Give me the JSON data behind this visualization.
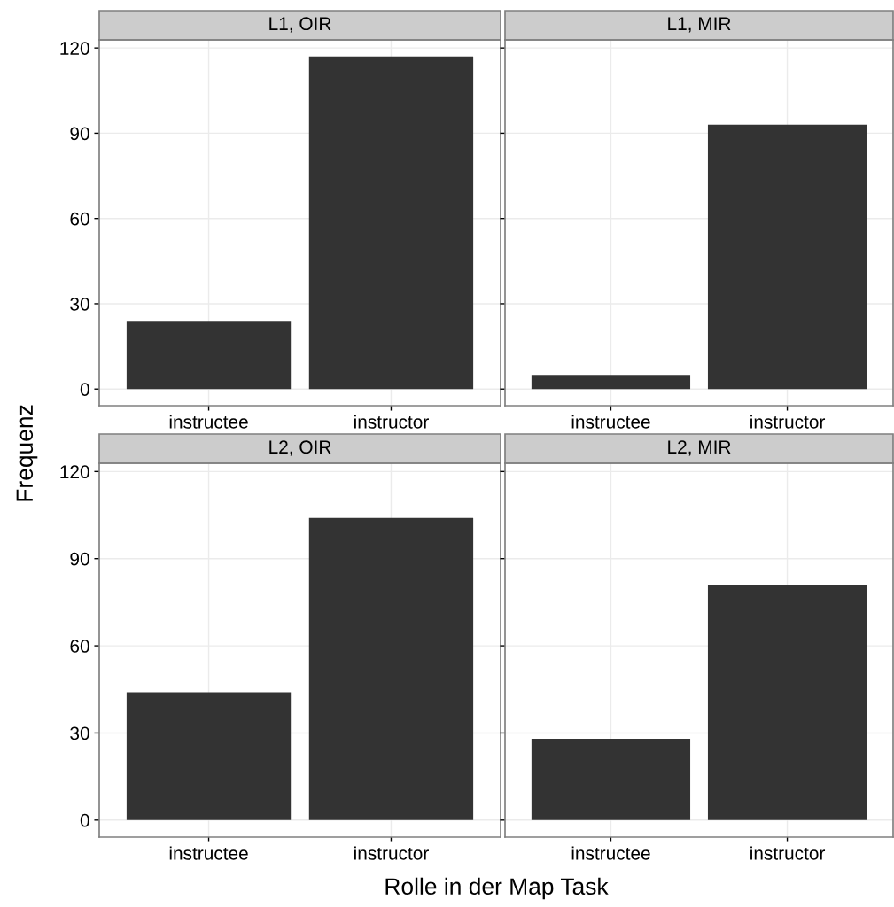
{
  "chart_data": [
    {
      "type": "bar",
      "title": "L1, OIR",
      "ylabel": "Frequenz",
      "categories": [
        "instructee",
        "instructor"
      ],
      "values": [
        24,
        117
      ],
      "color": "#333333",
      "ylim": [
        -5.85,
        122.85
      ],
      "yticks": [
        0,
        30,
        60,
        90,
        120
      ],
      "grid": true
    },
    {
      "type": "bar",
      "title": "L1, MIR",
      "categories": [
        "instructee",
        "instructor"
      ],
      "values": [
        5,
        93
      ],
      "color": "#333333",
      "ylim": [
        -5.85,
        122.85
      ],
      "yticks": [
        0,
        30,
        60,
        90,
        120
      ],
      "grid": true,
      "tick_labels": "x"
    },
    {
      "type": "bar",
      "title": "L2, OIR",
      "xlabel": "Rolle in der Map Task",
      "categories": [
        "instructee",
        "instructor"
      ],
      "values": [
        44,
        104
      ],
      "color": "#333333",
      "ylim": [
        -5.85,
        122.85
      ],
      "yticks": [
        0,
        30,
        60,
        90,
        120
      ],
      "grid": true
    },
    {
      "type": "bar",
      "title": "L2, MIR",
      "categories": [
        "instructee",
        "instructor"
      ],
      "values": [
        28,
        81
      ],
      "color": "#333333",
      "ylim": [
        -5.85,
        122.85
      ],
      "yticks": [
        0,
        30,
        60,
        90,
        120
      ],
      "grid": true,
      "tick_labels": "x"
    }
  ]
}
